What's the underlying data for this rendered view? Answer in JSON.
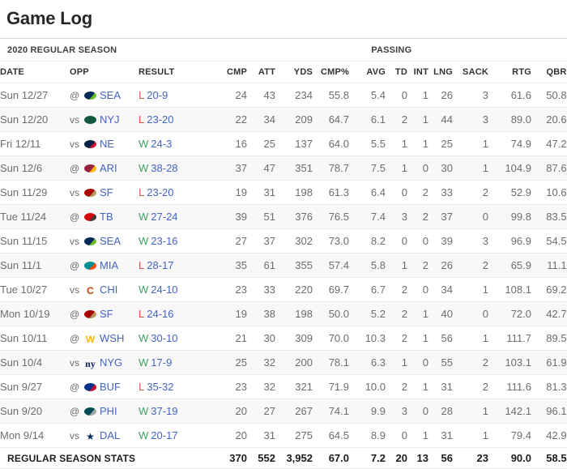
{
  "page": {
    "title": "Game Log"
  },
  "colors": {
    "link_blue": "#4464c4",
    "win_green": "#3f9e63",
    "loss_red": "#de524b",
    "row_alt_bg": "#f8f8f8",
    "text_gray": "#6c6d6f"
  },
  "teams": {
    "SEA": {
      "logo": {
        "type": "shape",
        "colors": [
          "#002a5c",
          "#69be28"
        ]
      }
    },
    "NYJ": {
      "logo": {
        "type": "shape",
        "colors": [
          "#125740"
        ]
      }
    },
    "NE": {
      "logo": {
        "type": "shape",
        "colors": [
          "#002244",
          "#c60c30"
        ]
      }
    },
    "ARI": {
      "logo": {
        "type": "shape",
        "colors": [
          "#97233f",
          "#ffb612"
        ]
      }
    },
    "SF": {
      "logo": {
        "type": "shape",
        "colors": [
          "#aa0000",
          "#b3995d"
        ]
      }
    },
    "TB": {
      "logo": {
        "type": "shape",
        "colors": [
          "#d50a0a",
          "#3e3a35"
        ]
      }
    },
    "MIA": {
      "logo": {
        "type": "shape",
        "colors": [
          "#008e97",
          "#fc4c02"
        ]
      }
    },
    "CHI": {
      "logo": {
        "type": "text",
        "text": "C",
        "color": "#c83803"
      }
    },
    "WSH": {
      "logo": {
        "type": "text",
        "text": "W",
        "color": "#ffb612"
      }
    },
    "NYG": {
      "logo": {
        "type": "text",
        "text": "ny",
        "color": "#0b2265",
        "serif": true
      }
    },
    "BUF": {
      "logo": {
        "type": "shape",
        "colors": [
          "#00338d",
          "#c60c30"
        ]
      }
    },
    "PHI": {
      "logo": {
        "type": "shape",
        "colors": [
          "#004c54",
          "#a2aaad"
        ]
      }
    },
    "DAL": {
      "logo": {
        "type": "text",
        "text": "★",
        "color": "#002a5c"
      }
    }
  },
  "table": {
    "season_label": "2020 REGULAR SEASON",
    "section_label": "PASSING",
    "columns": [
      {
        "key": "date",
        "label": "DATE"
      },
      {
        "key": "opp",
        "label": "OPP"
      },
      {
        "key": "result",
        "label": "RESULT"
      },
      {
        "key": "cmp",
        "label": "CMP"
      },
      {
        "key": "att",
        "label": "ATT"
      },
      {
        "key": "yds",
        "label": "YDS"
      },
      {
        "key": "cmp_pct",
        "label": "CMP%"
      },
      {
        "key": "avg",
        "label": "AVG"
      },
      {
        "key": "td",
        "label": "TD"
      },
      {
        "key": "int",
        "label": "INT"
      },
      {
        "key": "lng",
        "label": "LNG"
      },
      {
        "key": "sack",
        "label": "SACK"
      },
      {
        "key": "rtg",
        "label": "RTG"
      },
      {
        "key": "qbr",
        "label": "QBR"
      }
    ],
    "stat_keys": [
      "cmp",
      "att",
      "yds",
      "cmp_pct",
      "avg",
      "td",
      "int",
      "lng",
      "sack",
      "rtg",
      "qbr"
    ],
    "games": [
      {
        "date": "Sun 12/27",
        "prefix": "@",
        "team": "SEA",
        "result": "L",
        "score": "20-9",
        "stats": [
          "24",
          "43",
          "234",
          "55.8",
          "5.4",
          "0",
          "1",
          "26",
          "3",
          "61.6",
          "50.8"
        ]
      },
      {
        "date": "Sun 12/20",
        "prefix": "vs",
        "team": "NYJ",
        "result": "L",
        "score": "23-20",
        "stats": [
          "22",
          "34",
          "209",
          "64.7",
          "6.1",
          "2",
          "1",
          "44",
          "3",
          "89.0",
          "20.6"
        ]
      },
      {
        "date": "Fri 12/11",
        "prefix": "vs",
        "team": "NE",
        "result": "W",
        "score": "24-3",
        "stats": [
          "16",
          "25",
          "137",
          "64.0",
          "5.5",
          "1",
          "1",
          "25",
          "1",
          "74.9",
          "47.2"
        ]
      },
      {
        "date": "Sun 12/6",
        "prefix": "@",
        "team": "ARI",
        "result": "W",
        "score": "38-28",
        "stats": [
          "37",
          "47",
          "351",
          "78.7",
          "7.5",
          "1",
          "0",
          "30",
          "1",
          "104.9",
          "87.6"
        ]
      },
      {
        "date": "Sun 11/29",
        "prefix": "vs",
        "team": "SF",
        "result": "L",
        "score": "23-20",
        "stats": [
          "19",
          "31",
          "198",
          "61.3",
          "6.4",
          "0",
          "2",
          "33",
          "2",
          "52.9",
          "10.6"
        ]
      },
      {
        "date": "Tue 11/24",
        "prefix": "@",
        "team": "TB",
        "result": "W",
        "score": "27-24",
        "stats": [
          "39",
          "51",
          "376",
          "76.5",
          "7.4",
          "3",
          "2",
          "37",
          "0",
          "99.8",
          "83.5"
        ]
      },
      {
        "date": "Sun 11/15",
        "prefix": "vs",
        "team": "SEA",
        "result": "W",
        "score": "23-16",
        "stats": [
          "27",
          "37",
          "302",
          "73.0",
          "8.2",
          "0",
          "0",
          "39",
          "3",
          "96.9",
          "54.5"
        ]
      },
      {
        "date": "Sun 11/1",
        "prefix": "@",
        "team": "MIA",
        "result": "L",
        "score": "28-17",
        "stats": [
          "35",
          "61",
          "355",
          "57.4",
          "5.8",
          "1",
          "2",
          "26",
          "2",
          "65.9",
          "11.1"
        ]
      },
      {
        "date": "Tue 10/27",
        "prefix": "vs",
        "team": "CHI",
        "result": "W",
        "score": "24-10",
        "stats": [
          "23",
          "33",
          "220",
          "69.7",
          "6.7",
          "2",
          "0",
          "34",
          "1",
          "108.1",
          "69.2"
        ]
      },
      {
        "date": "Mon 10/19",
        "prefix": "@",
        "team": "SF",
        "result": "L",
        "score": "24-16",
        "stats": [
          "19",
          "38",
          "198",
          "50.0",
          "5.2",
          "2",
          "1",
          "40",
          "0",
          "72.0",
          "42.7"
        ]
      },
      {
        "date": "Sun 10/11",
        "prefix": "@",
        "team": "WSH",
        "result": "W",
        "score": "30-10",
        "stats": [
          "21",
          "30",
          "309",
          "70.0",
          "10.3",
          "2",
          "1",
          "56",
          "1",
          "111.7",
          "89.5"
        ]
      },
      {
        "date": "Sun 10/4",
        "prefix": "vs",
        "team": "NYG",
        "result": "W",
        "score": "17-9",
        "stats": [
          "25",
          "32",
          "200",
          "78.1",
          "6.3",
          "1",
          "0",
          "55",
          "2",
          "103.1",
          "61.9"
        ]
      },
      {
        "date": "Sun 9/27",
        "prefix": "@",
        "team": "BUF",
        "result": "L",
        "score": "35-32",
        "stats": [
          "23",
          "32",
          "321",
          "71.9",
          "10.0",
          "2",
          "1",
          "31",
          "2",
          "111.6",
          "81.3"
        ]
      },
      {
        "date": "Sun 9/20",
        "prefix": "@",
        "team": "PHI",
        "result": "W",
        "score": "37-19",
        "stats": [
          "20",
          "27",
          "267",
          "74.1",
          "9.9",
          "3",
          "0",
          "28",
          "1",
          "142.1",
          "96.1"
        ]
      },
      {
        "date": "Mon 9/14",
        "prefix": "vs",
        "team": "DAL",
        "result": "W",
        "score": "20-17",
        "stats": [
          "20",
          "31",
          "275",
          "64.5",
          "8.9",
          "0",
          "1",
          "31",
          "1",
          "79.4",
          "42.9"
        ]
      }
    ],
    "footer": {
      "label": "REGULAR SEASON STATS",
      "values": [
        "370",
        "552",
        "3,952",
        "67.0",
        "7.2",
        "20",
        "13",
        "56",
        "23",
        "90.0",
        "58.5"
      ]
    }
  }
}
